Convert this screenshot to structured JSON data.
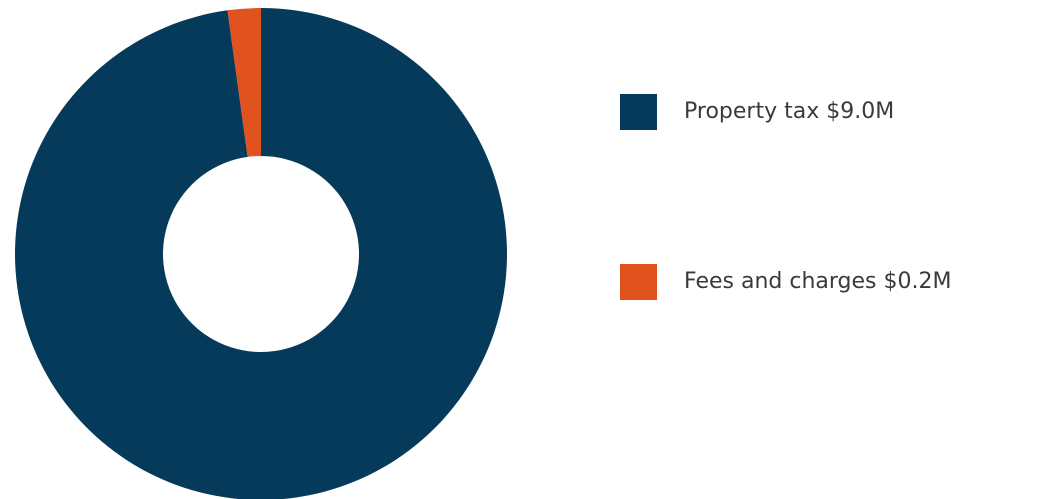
{
  "chart_data": {
    "type": "donut",
    "categories": [
      "Property tax",
      "Fees and charges"
    ],
    "values": [
      9.0,
      0.2
    ],
    "value_labels": [
      "$9.0M",
      "$0.2M"
    ],
    "colors": [
      "#063a5b",
      "#e0531f"
    ],
    "legend": "right"
  }
}
